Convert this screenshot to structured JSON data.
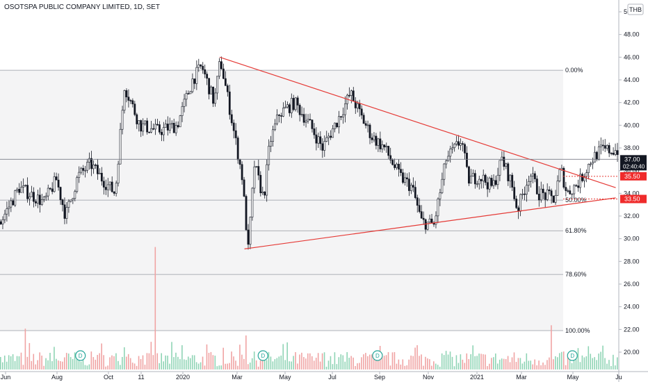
{
  "header": {
    "title": "OSOTSPA PUBLIC COMPANY LIMITED, 1D, SET",
    "currency": "THB"
  },
  "chart_data": {
    "type": "candlestick",
    "title": "OSOTSPA PUBLIC COMPANY LIMITED, 1D, SET",
    "currency": "THB",
    "xlabel": "",
    "ylabel": "",
    "ylim": [
      19.0,
      50.0
    ],
    "y_ticks": [
      "20.00",
      "22.00",
      "24.00",
      "26.00",
      "28.00",
      "30.00",
      "32.00",
      "34.00",
      "36.00",
      "38.00",
      "40.00",
      "42.00",
      "44.00",
      "46.00",
      "48.00",
      "50.00"
    ],
    "x_ticks": [
      "Jun",
      "Aug",
      "Oct",
      "11",
      "2020",
      "Mar",
      "May",
      "Jul",
      "Sep",
      "Nov",
      "2021",
      "Mar",
      "May",
      "Ju"
    ],
    "price_path": [
      {
        "t": 0,
        "p": 31.5
      },
      {
        "t": 0.03,
        "p": 34.5
      },
      {
        "t": 0.07,
        "p": 33.2
      },
      {
        "t": 0.09,
        "p": 35.2
      },
      {
        "t": 0.105,
        "p": 32.0
      },
      {
        "t": 0.125,
        "p": 35.5
      },
      {
        "t": 0.145,
        "p": 36.6
      },
      {
        "t": 0.165,
        "p": 35.2
      },
      {
        "t": 0.185,
        "p": 34.0
      },
      {
        "t": 0.2,
        "p": 43.5
      },
      {
        "t": 0.225,
        "p": 40.0
      },
      {
        "t": 0.255,
        "p": 39.5
      },
      {
        "t": 0.285,
        "p": 40.0
      },
      {
        "t": 0.31,
        "p": 44.0
      },
      {
        "t": 0.325,
        "p": 45.2
      },
      {
        "t": 0.345,
        "p": 42.0
      },
      {
        "t": 0.355,
        "p": 45.8
      },
      {
        "t": 0.37,
        "p": 41.5
      },
      {
        "t": 0.38,
        "p": 38.5
      },
      {
        "t": 0.39,
        "p": 35.5
      },
      {
        "t": 0.4,
        "p": 29.0
      },
      {
        "t": 0.41,
        "p": 36.5
      },
      {
        "t": 0.425,
        "p": 33.5
      },
      {
        "t": 0.435,
        "p": 38.5
      },
      {
        "t": 0.45,
        "p": 41.0
      },
      {
        "t": 0.475,
        "p": 42.0
      },
      {
        "t": 0.5,
        "p": 40.0
      },
      {
        "t": 0.52,
        "p": 38.0
      },
      {
        "t": 0.545,
        "p": 40.5
      },
      {
        "t": 0.565,
        "p": 42.8
      },
      {
        "t": 0.585,
        "p": 40.5
      },
      {
        "t": 0.6,
        "p": 39.0
      },
      {
        "t": 0.62,
        "p": 38.0
      },
      {
        "t": 0.645,
        "p": 35.5
      },
      {
        "t": 0.665,
        "p": 34.5
      },
      {
        "t": 0.68,
        "p": 31.5
      },
      {
        "t": 0.7,
        "p": 31.2
      },
      {
        "t": 0.72,
        "p": 37.0
      },
      {
        "t": 0.735,
        "p": 38.0
      },
      {
        "t": 0.745,
        "p": 38.8
      },
      {
        "t": 0.755,
        "p": 35.2
      },
      {
        "t": 0.775,
        "p": 35.5
      },
      {
        "t": 0.795,
        "p": 34.5
      },
      {
        "t": 0.81,
        "p": 37.0
      },
      {
        "t": 0.825,
        "p": 35.0
      },
      {
        "t": 0.835,
        "p": 32.5
      },
      {
        "t": 0.855,
        "p": 35.8
      },
      {
        "t": 0.87,
        "p": 34.0
      },
      {
        "t": 0.895,
        "p": 33.5
      },
      {
        "t": 0.905,
        "p": 36.2
      },
      {
        "t": 0.915,
        "p": 34.0
      },
      {
        "t": 0.935,
        "p": 35.0
      },
      {
        "t": 0.955,
        "p": 37.0
      },
      {
        "t": 0.97,
        "p": 37.8
      }
    ],
    "fibonacci": [
      {
        "label": "0.00%",
        "value": 44.85
      },
      {
        "label": "50.00%",
        "value": 33.4
      },
      {
        "label": "61.80%",
        "value": 30.7
      },
      {
        "label": "78.60%",
        "value": 26.85
      },
      {
        "label": "100.00%",
        "value": 21.9
      }
    ],
    "trendlines": [
      {
        "name": "resistance",
        "from": {
          "t": 0.355,
          "p": 46.0
        },
        "to": {
          "t": 0.995,
          "p": 34.5
        }
      },
      {
        "name": "support",
        "from": {
          "t": 0.395,
          "p": 29.1
        },
        "to": {
          "t": 0.995,
          "p": 33.6
        }
      }
    ],
    "horizontal_levels": [
      {
        "value": 37.0
      }
    ],
    "dotted_levels": [
      {
        "value": 35.5
      },
      {
        "value": 33.5
      }
    ],
    "price_labels": [
      {
        "text": "37.00",
        "value": 37.0,
        "bg": "#131722",
        "sub": "02:40:40"
      },
      {
        "text": "35.50",
        "value": 35.5,
        "bg": "#ef2b2b"
      },
      {
        "text": "33.50",
        "value": 33.5,
        "bg": "#ef2b2b"
      }
    ],
    "volume_spikes": [
      {
        "t": 0.04,
        "h": 0.12
      },
      {
        "t": 0.25,
        "h": 0.36
      },
      {
        "t": 0.395,
        "h": 0.1
      },
      {
        "t": 0.89,
        "h": 0.13
      }
    ],
    "event_markers": [
      "D",
      "D",
      "D",
      "D"
    ]
  },
  "colors": {
    "up": "#26a69a",
    "down": "#ef5350",
    "candle": "#131722",
    "trend": "#e53935",
    "grid": "#c9cbd1",
    "volume_up": "#8fd4b5",
    "volume_down": "#f0a3a3"
  }
}
